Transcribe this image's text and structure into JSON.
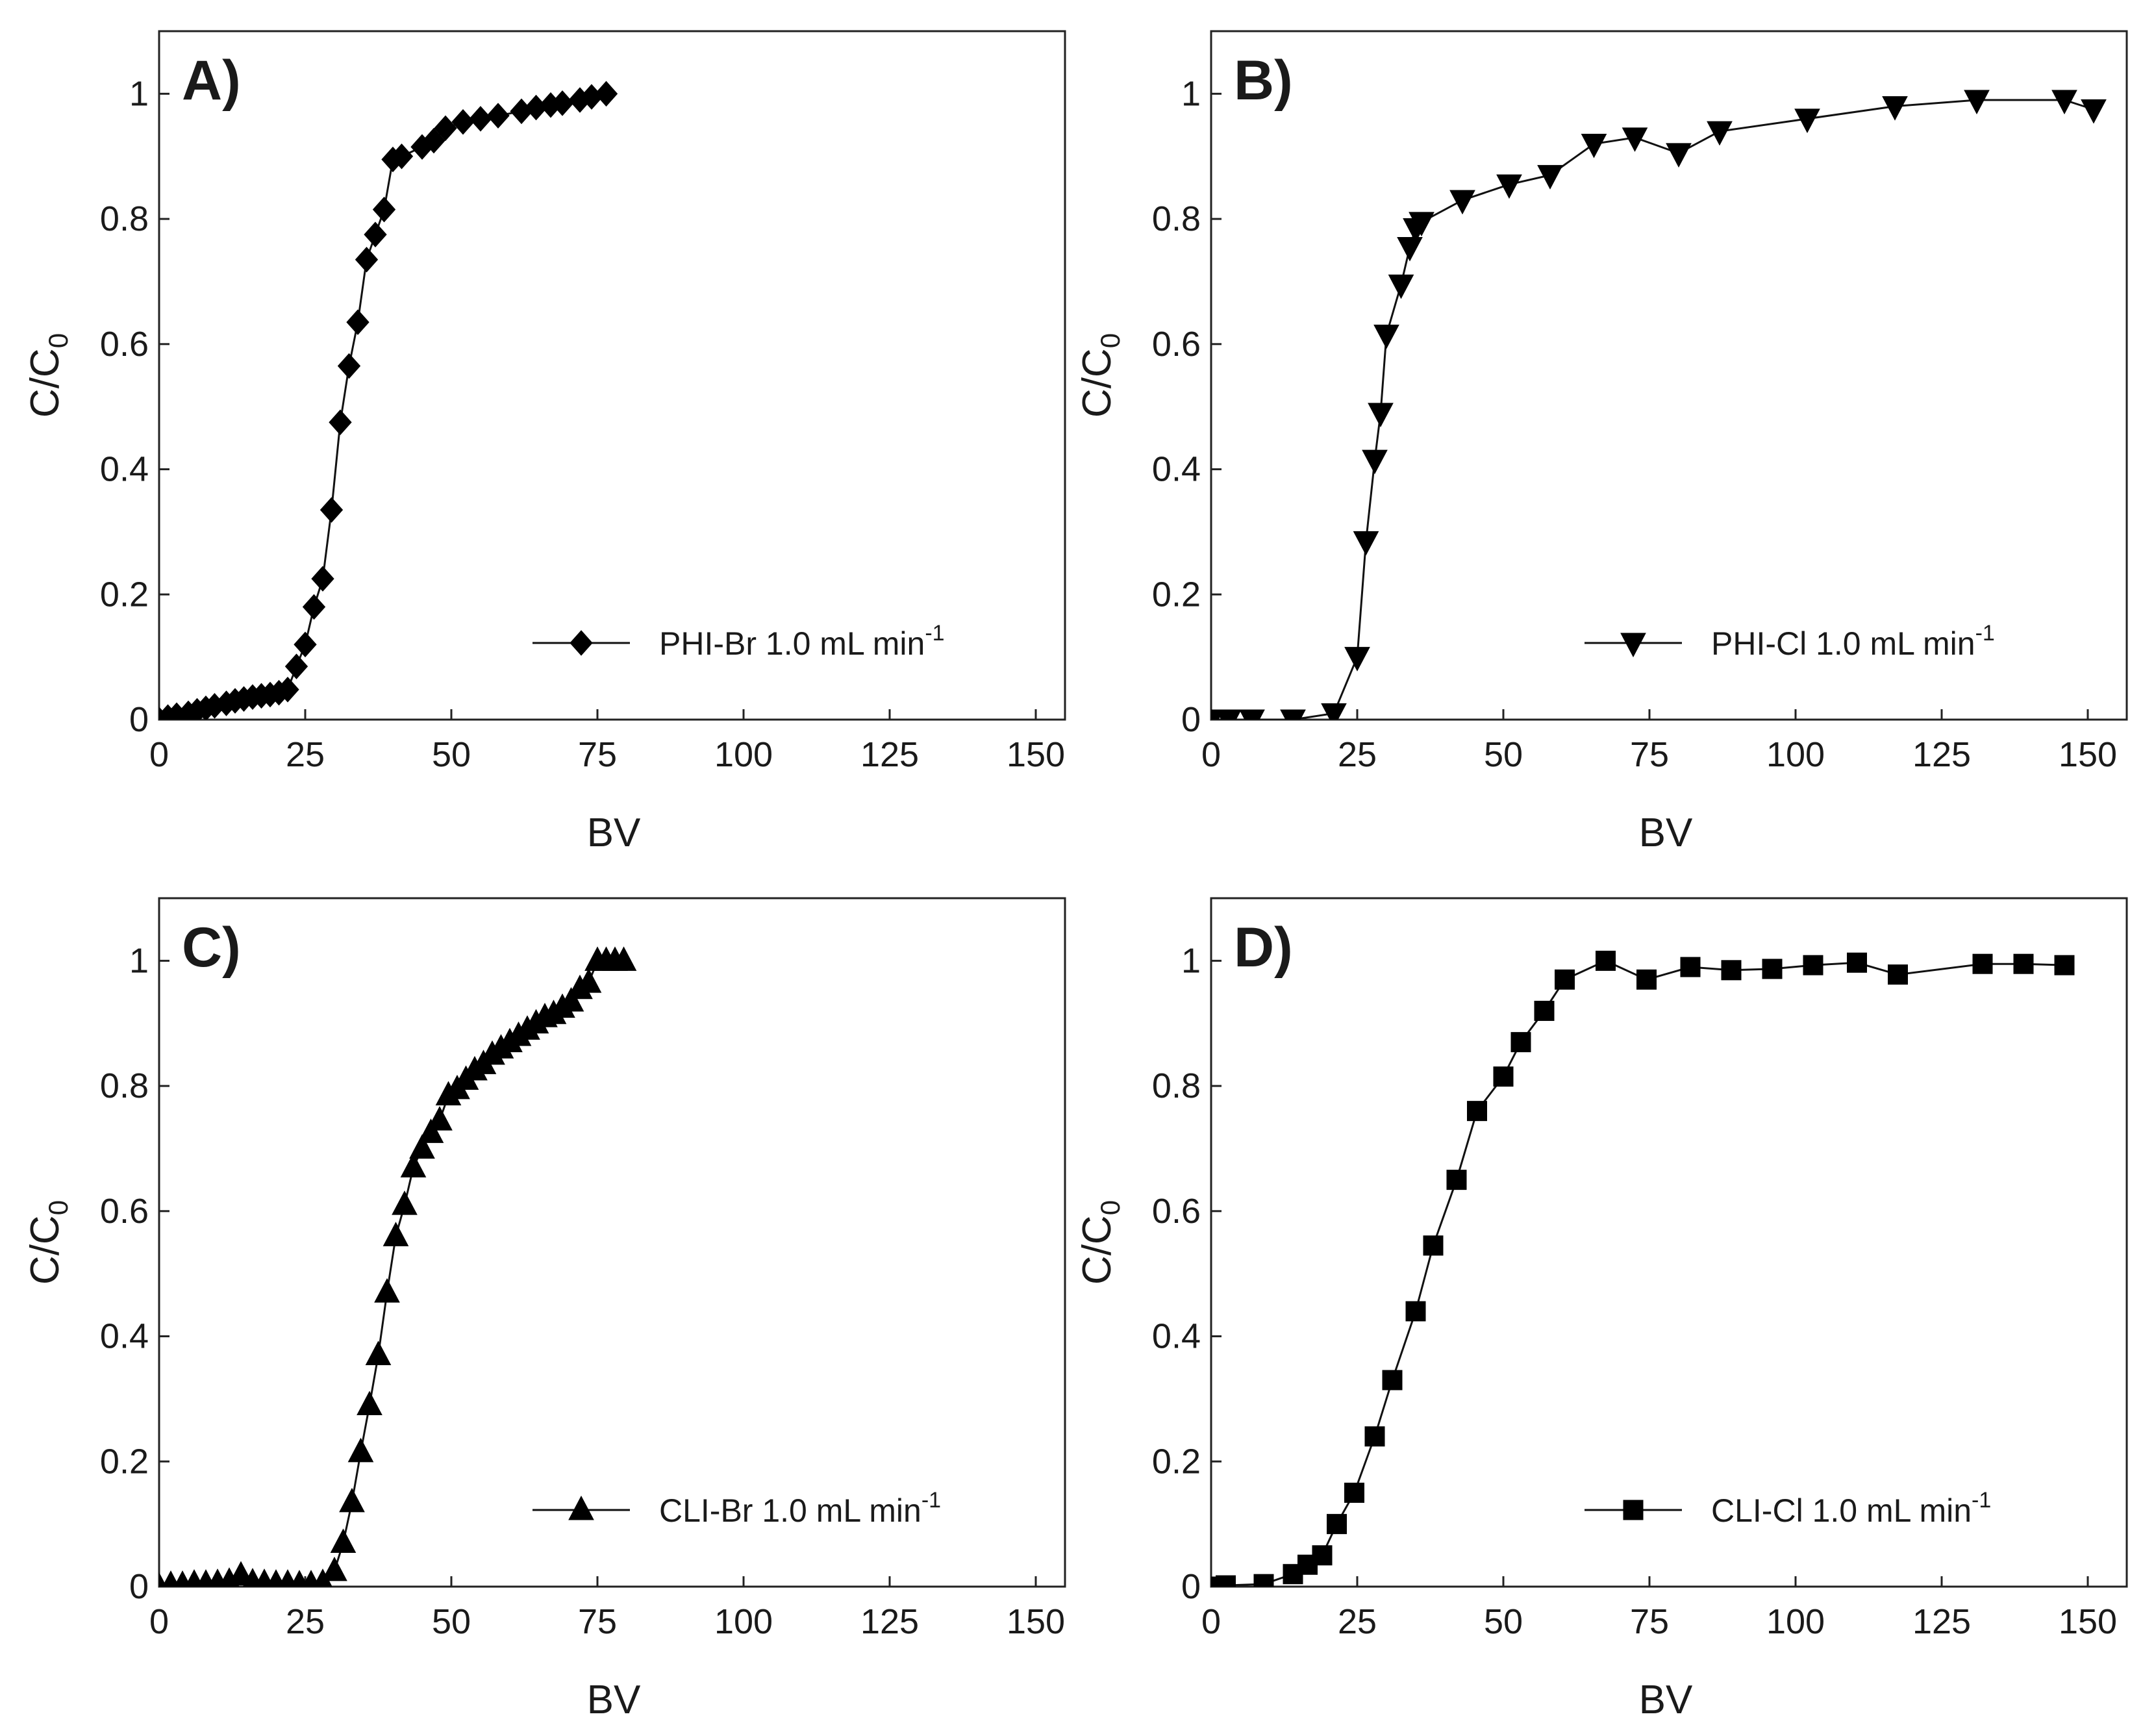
{
  "chart_data": [
    {
      "type": "line",
      "panel": "A)",
      "xlabel": "BV",
      "ylabel": "C/C0",
      "xlim": [
        0,
        150
      ],
      "ylim": [
        0,
        1.1
      ],
      "xticks": [
        "0",
        "25",
        "50",
        "75",
        "100",
        "125",
        "150"
      ],
      "yticks": [
        "0",
        "0.2",
        "0.4",
        "0.6",
        "0.8",
        "1"
      ],
      "legend": {
        "label": "PHI-Br 1.0 mL min",
        "superscript": "-1",
        "position": "lower-right"
      },
      "series": [
        {
          "name": "PHI-Br 1.0 mL min-1",
          "marker": "diamond",
          "x": [
            0,
            1.5,
            3,
            5,
            6.5,
            8,
            9.5,
            11.5,
            13,
            14.5,
            16,
            17.5,
            19,
            20.5,
            22,
            23.5,
            25,
            26.5,
            28,
            29.5,
            31,
            32.5,
            34,
            35.5,
            37,
            38.5,
            40,
            41.5,
            45,
            47,
            49,
            52,
            55,
            58,
            62,
            64.5,
            67,
            69,
            72,
            74,
            76.5
          ],
          "y": [
            0,
            0.004,
            0.007,
            0.01,
            0.014,
            0.018,
            0.022,
            0.026,
            0.03,
            0.033,
            0.036,
            0.038,
            0.04,
            0.043,
            0.048,
            0.085,
            0.12,
            0.18,
            0.225,
            0.335,
            0.475,
            0.565,
            0.635,
            0.735,
            0.775,
            0.815,
            0.895,
            0.9,
            0.915,
            0.925,
            0.945,
            0.955,
            0.96,
            0.965,
            0.972,
            0.978,
            0.982,
            0.985,
            0.99,
            0.995,
            1.0
          ]
        }
      ]
    },
    {
      "type": "line",
      "panel": "B)",
      "xlabel": "BV",
      "ylabel": "C/C0",
      "xlim": [
        0,
        150
      ],
      "ylim": [
        0,
        1.1
      ],
      "xticks": [
        "0",
        "25",
        "50",
        "75",
        "100",
        "125",
        "150"
      ],
      "yticks": [
        "0",
        "0.2",
        "0.4",
        "0.6",
        "0.8",
        "1"
      ],
      "legend": {
        "label": "PHI-Cl 1.0 mL min",
        "superscript": "-1",
        "position": "lower-right"
      },
      "series": [
        {
          "name": "PHI-Cl 1.0 mL min-1",
          "marker": "triangle-down",
          "x": [
            0,
            3,
            7,
            14,
            21,
            25,
            26.5,
            28,
            29,
            30,
            32.5,
            34,
            35,
            36,
            43,
            51,
            58,
            65.5,
            72.5,
            80,
            87,
            102,
            117,
            131,
            146,
            151
          ],
          "y": [
            0,
            0,
            0,
            0,
            0.01,
            0.1,
            0.285,
            0.415,
            0.49,
            0.615,
            0.695,
            0.755,
            0.785,
            0.795,
            0.83,
            0.855,
            0.87,
            0.92,
            0.93,
            0.905,
            0.94,
            0.96,
            0.98,
            0.99,
            0.99,
            0.975
          ]
        }
      ]
    },
    {
      "type": "line",
      "panel": "C)",
      "xlabel": "BV",
      "ylabel": "C/C0",
      "xlim": [
        0,
        150
      ],
      "ylim": [
        0,
        1.1
      ],
      "xticks": [
        "0",
        "25",
        "50",
        "75",
        "100",
        "125",
        "150"
      ],
      "yticks": [
        "0",
        "0.2",
        "0.4",
        "0.6",
        "0.8",
        "1"
      ],
      "legend": {
        "label": "CLI-Br 1.0 mL min",
        "superscript": "-1",
        "position": "lower-right"
      },
      "series": [
        {
          "name": "CLI-Br 1.0 mL min-1",
          "marker": "triangle-up",
          "x": [
            0,
            2,
            4,
            6,
            8,
            10,
            12,
            14,
            16,
            18,
            20,
            22,
            24,
            26,
            28,
            30,
            31.5,
            33,
            34.5,
            36,
            37.5,
            39,
            40.5,
            42,
            43.5,
            45,
            46.5,
            48,
            49.5,
            51,
            52.5,
            54,
            55.5,
            57,
            58.5,
            60,
            61.5,
            63,
            64.5,
            66,
            67.5,
            69,
            70.5,
            72,
            73.5,
            75,
            76.5,
            78,
            79.5
          ],
          "y": [
            0,
            0.003,
            0.003,
            0.005,
            0.005,
            0.006,
            0.008,
            0.018,
            0.007,
            0.006,
            0.005,
            0.005,
            0.004,
            0.004,
            0.006,
            0.025,
            0.07,
            0.135,
            0.215,
            0.29,
            0.37,
            0.47,
            0.56,
            0.61,
            0.67,
            0.7,
            0.725,
            0.745,
            0.785,
            0.795,
            0.81,
            0.825,
            0.835,
            0.85,
            0.86,
            0.87,
            0.88,
            0.89,
            0.9,
            0.91,
            0.915,
            0.925,
            0.935,
            0.955,
            0.965,
            1.0,
            1.0,
            1.0,
            1.0
          ]
        }
      ]
    },
    {
      "type": "line",
      "panel": "D)",
      "xlabel": "BV",
      "ylabel": "C/C0",
      "xlim": [
        0,
        150
      ],
      "ylim": [
        0,
        1.1
      ],
      "xticks": [
        "0",
        "25",
        "50",
        "75",
        "100",
        "125",
        "150"
      ],
      "yticks": [
        "0",
        "0.2",
        "0.4",
        "0.6",
        "0.8",
        "1"
      ],
      "legend": {
        "label": "CLI-Cl 1.0 mL min",
        "superscript": "-1",
        "position": "lower-right"
      },
      "series": [
        {
          "name": "CLI-Cl 1.0 mL min-1",
          "marker": "square",
          "x": [
            0,
            2.5,
            9,
            14,
            16.5,
            19,
            21.5,
            24.5,
            28,
            31,
            35,
            38,
            42,
            45.5,
            50,
            53,
            57,
            60.5,
            67.5,
            74.5,
            82,
            89,
            96,
            103,
            110.5,
            117.5,
            132,
            139,
            146
          ],
          "y": [
            0,
            0.002,
            0.004,
            0.02,
            0.035,
            0.05,
            0.1,
            0.15,
            0.24,
            0.33,
            0.44,
            0.545,
            0.65,
            0.76,
            0.815,
            0.87,
            0.92,
            0.97,
            1.0,
            0.97,
            0.99,
            0.985,
            0.987,
            0.993,
            0.997,
            0.978,
            0.995,
            0.995,
            0.993
          ]
        }
      ]
    }
  ]
}
